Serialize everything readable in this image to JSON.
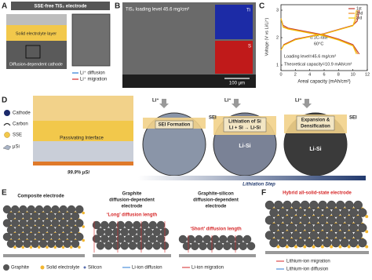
{
  "panel_a": {
    "label": "A",
    "title": "SSE-free TiS₂ electrode",
    "layers": [
      "Solid electrolyte layer",
      "Diffusion-dependent cathode"
    ],
    "legend": [
      "Li⁺ diffusion",
      "Li⁺ migration"
    ]
  },
  "panel_b": {
    "label": "B",
    "caption": "TiS₂ loading level 45.6 mg/cm²",
    "maps": [
      "Ti",
      "S"
    ],
    "scale_bar": "100 μm"
  },
  "chart_data": {
    "type": "line",
    "label": "C",
    "x_label": "Areal capacity (mAh/cm²)",
    "y_label": "Voltage (V vs Li/Li⁺)",
    "xlim": [
      0,
      12
    ],
    "xticks": [
      0,
      2,
      4,
      6,
      8,
      10,
      12
    ],
    "ylim": [
      0.8,
      3.2
    ],
    "yticks": [
      1,
      2,
      3
    ],
    "legend": "upper right",
    "annotations": [
      "0.1C-rate",
      "60°C",
      "Loading level=45.6 mg/cm²",
      "Theoretical capacity=10.9 mAh/cm²"
    ],
    "series": [
      {
        "name": "1st",
        "color": "#c0392b",
        "x": [
          0,
          0.3,
          1,
          2,
          4,
          6,
          8,
          10,
          10.9,
          null,
          0,
          0.4,
          2,
          4,
          6,
          8,
          10,
          10.6,
          10.9
        ],
        "values": [
          2.7,
          2.45,
          2.35,
          2.3,
          2.2,
          2.1,
          1.95,
          1.75,
          1.4,
          null,
          1.55,
          1.75,
          1.95,
          2.05,
          2.15,
          2.3,
          2.45,
          2.6,
          3.0
        ]
      },
      {
        "name": "2nd",
        "color": "#f08a24",
        "x": [
          0,
          0.3,
          1,
          2,
          4,
          6,
          8,
          10,
          10.7,
          null,
          0,
          0.4,
          2,
          4,
          6,
          8,
          10,
          10.4,
          10.7
        ],
        "values": [
          2.7,
          2.4,
          2.33,
          2.28,
          2.18,
          2.08,
          1.93,
          1.72,
          1.4,
          null,
          1.55,
          1.73,
          1.93,
          2.04,
          2.14,
          2.29,
          2.44,
          2.6,
          3.0
        ]
      },
      {
        "name": "3rd",
        "color": "#f2c100",
        "x": [
          0,
          0.3,
          1,
          2,
          4,
          6,
          8,
          10,
          10.5,
          null,
          0,
          0.4,
          2,
          4,
          6,
          8,
          10,
          10.2,
          10.5
        ],
        "values": [
          2.7,
          2.38,
          2.31,
          2.26,
          2.16,
          2.06,
          1.91,
          1.7,
          1.4,
          null,
          1.55,
          1.72,
          1.92,
          2.03,
          2.13,
          2.28,
          2.43,
          2.6,
          3.0
        ]
      }
    ]
  },
  "panel_d": {
    "label": "D",
    "legend": [
      "Cathode",
      "Carbon",
      "SSE",
      "μSi"
    ],
    "interface": "Passivating Interface",
    "composition": "99.9% μSi",
    "ion": "Li⁺",
    "steps": [
      {
        "lines": [
          "SEI Formation"
        ]
      },
      {
        "lines": [
          "Lithiation of Si",
          "Li + Si → Li-Si"
        ]
      },
      {
        "lines": [
          "Expansion &",
          "Densification"
        ]
      }
    ],
    "sei": "SEI",
    "alloy": "Li-Si",
    "axis": "Lithiation Step"
  },
  "panel_e": {
    "label": "E",
    "titles": [
      [
        "Composite electrode"
      ],
      [
        "Graphite",
        "diffusion-dependent",
        "electrode"
      ],
      [
        "Graphite-silicon",
        "diffusion-dependent",
        "electrode"
      ]
    ],
    "lengths": [
      "‘Long’ diffusion length",
      "‘Short’ diffusion length"
    ],
    "legend": [
      "Graphite",
      "Solid electrolyte",
      "Silicon",
      "Li-ion diffusion",
      "Li-ion migration"
    ]
  },
  "panel_f": {
    "label": "F",
    "title": "Hybrid all-solid-state electrode",
    "legend": [
      "Lithium-ion migration",
      "Lithium-ion diffusion"
    ]
  }
}
